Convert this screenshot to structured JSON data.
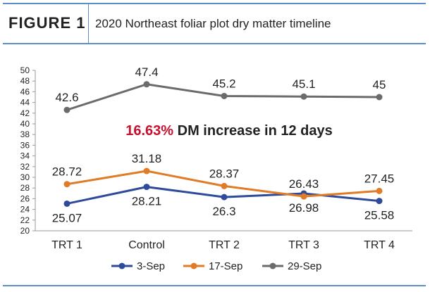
{
  "figure": {
    "label": "FIGURE 1",
    "title": "2020 Northeast foliar plot dry matter timeline"
  },
  "chart_data": {
    "type": "line",
    "title": "2020 Northeast foliar plot dry matter timeline",
    "xlabel": "",
    "ylabel": "",
    "categories": [
      "TRT 1",
      "Control",
      "TRT 2",
      "TRT 3",
      "TRT 4"
    ],
    "ylim": [
      20,
      50
    ],
    "ytick_step": 2,
    "yticks": [
      "20",
      "22",
      "24",
      "26",
      "28",
      "30",
      "32",
      "34",
      "36",
      "38",
      "40",
      "42",
      "44",
      "46",
      "48",
      "50"
    ],
    "grid": false,
    "legend_position": "bottom",
    "series": [
      {
        "name": "3-Sep",
        "color": "#2e4b9b",
        "values": [
          25.07,
          28.21,
          26.3,
          26.98,
          25.58
        ],
        "labels": [
          "25.07",
          "28.21",
          "26.3",
          "26.98",
          "25.58"
        ],
        "label_side": [
          "below",
          "below",
          "below",
          "below",
          "below"
        ]
      },
      {
        "name": "17-Sep",
        "color": "#e07b26",
        "values": [
          28.72,
          31.18,
          28.37,
          26.43,
          27.45
        ],
        "labels": [
          "28.72",
          "31.18",
          "28.37",
          "26.43",
          "27.45"
        ],
        "label_side": [
          "above",
          "above",
          "above",
          "above",
          "above"
        ]
      },
      {
        "name": "29-Sep",
        "color": "#6b6b6b",
        "values": [
          42.6,
          47.4,
          45.2,
          45.1,
          45
        ],
        "labels": [
          "42.6",
          "47.4",
          "45.2",
          "45.1",
          "45"
        ],
        "label_side": [
          "above",
          "above",
          "above",
          "above",
          "above"
        ]
      }
    ],
    "annotation": {
      "highlight": "16.63%",
      "text": " DM increase in 12 days"
    }
  }
}
